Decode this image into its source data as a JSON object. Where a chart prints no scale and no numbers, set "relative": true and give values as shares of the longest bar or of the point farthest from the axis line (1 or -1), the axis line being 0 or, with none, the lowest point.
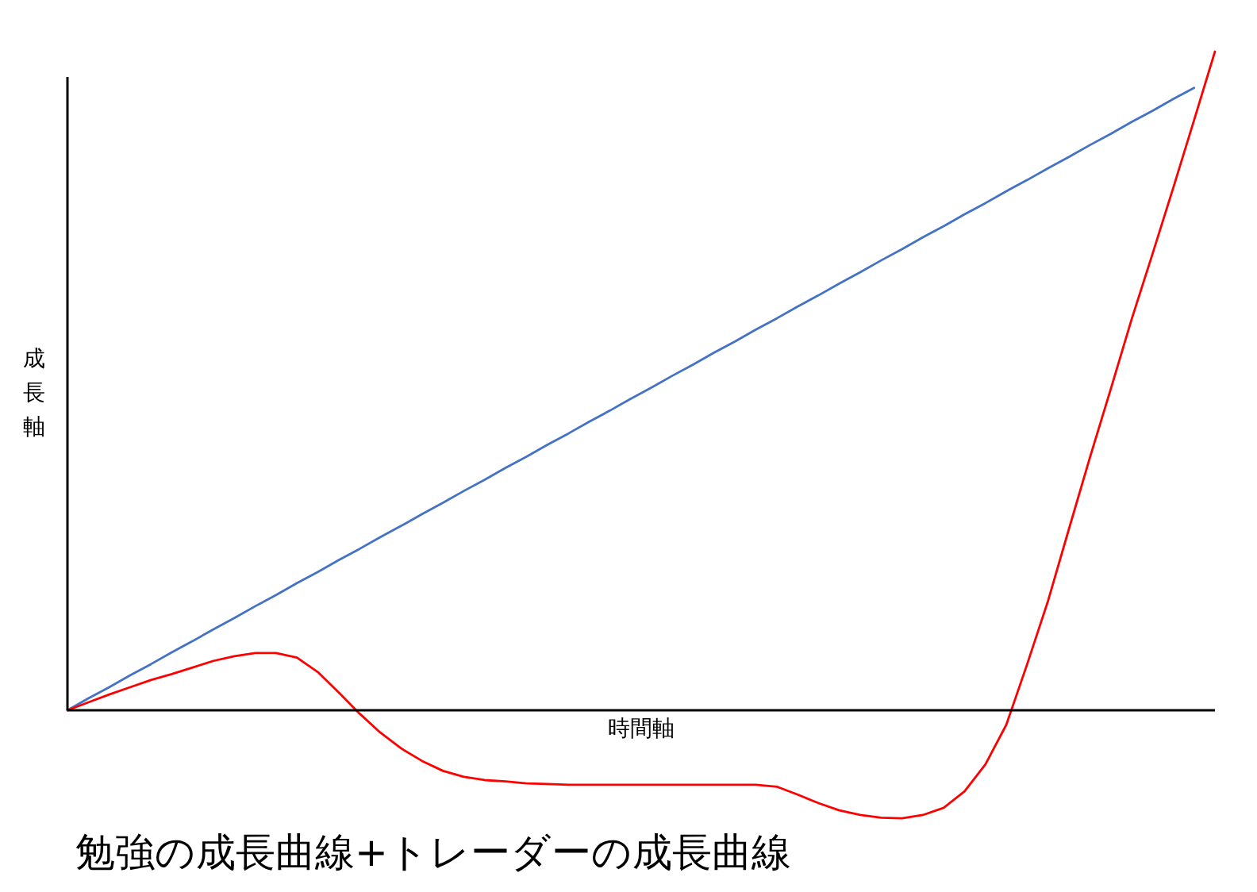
{
  "chart_data": {
    "type": "line",
    "title": "勉強の成長曲線+トレーダーの成長曲線",
    "xlabel": "時間軸",
    "ylabel": "成長軸",
    "relative": true,
    "grid": false,
    "line_style": "solid",
    "categories": [
      null,
      null,
      null,
      null,
      null,
      null,
      null,
      null,
      null,
      null,
      null,
      null,
      null,
      null,
      null,
      null,
      null,
      null,
      null,
      null,
      null,
      null,
      null,
      null,
      null,
      null,
      null,
      null,
      null,
      null,
      null,
      null,
      null,
      null,
      null,
      null,
      null,
      null,
      null,
      null,
      null,
      null,
      null,
      null,
      null,
      null,
      null,
      null,
      null,
      null,
      null,
      null,
      null,
      null,
      null,
      null
    ],
    "series": [
      {
        "color": "#4472c4",
        "values": [
          0,
          0.018,
          0.035,
          0.053,
          0.07,
          0.088,
          0.105,
          0.123,
          0.14,
          0.158,
          0.175,
          0.193,
          0.21,
          0.228,
          0.245,
          0.263,
          0.28,
          0.298,
          0.315,
          0.333,
          0.35,
          0.368,
          0.385,
          0.403,
          0.42,
          0.438,
          0.455,
          0.473,
          0.49,
          0.508,
          0.525,
          0.543,
          0.56,
          0.578,
          0.595,
          0.613,
          0.63,
          0.648,
          0.665,
          0.683,
          0.7,
          0.718,
          0.735,
          0.753,
          0.77,
          0.788,
          0.805,
          0.823,
          0.84,
          0.858,
          0.875,
          0.893,
          0.91,
          0.928,
          0.945,
          null
        ]
      },
      {
        "color": "#ff0000",
        "values": [
          0,
          0.012,
          0.024,
          0.035,
          0.046,
          0.055,
          0.065,
          0.075,
          0.082,
          0.087,
          0.087,
          0.08,
          0.058,
          0.027,
          -0.005,
          -0.034,
          -0.058,
          -0.077,
          -0.092,
          -0.101,
          -0.106,
          -0.108,
          -0.111,
          -0.112,
          -0.113,
          -0.113,
          -0.113,
          -0.113,
          -0.113,
          -0.113,
          -0.113,
          -0.113,
          -0.113,
          -0.113,
          -0.116,
          -0.128,
          -0.141,
          -0.152,
          -0.159,
          -0.163,
          -0.164,
          -0.159,
          -0.148,
          -0.123,
          -0.082,
          -0.022,
          0.07,
          0.166,
          0.275,
          0.383,
          0.487,
          0.593,
          0.692,
          0.793,
          0.896,
          1
        ]
      }
    ]
  }
}
